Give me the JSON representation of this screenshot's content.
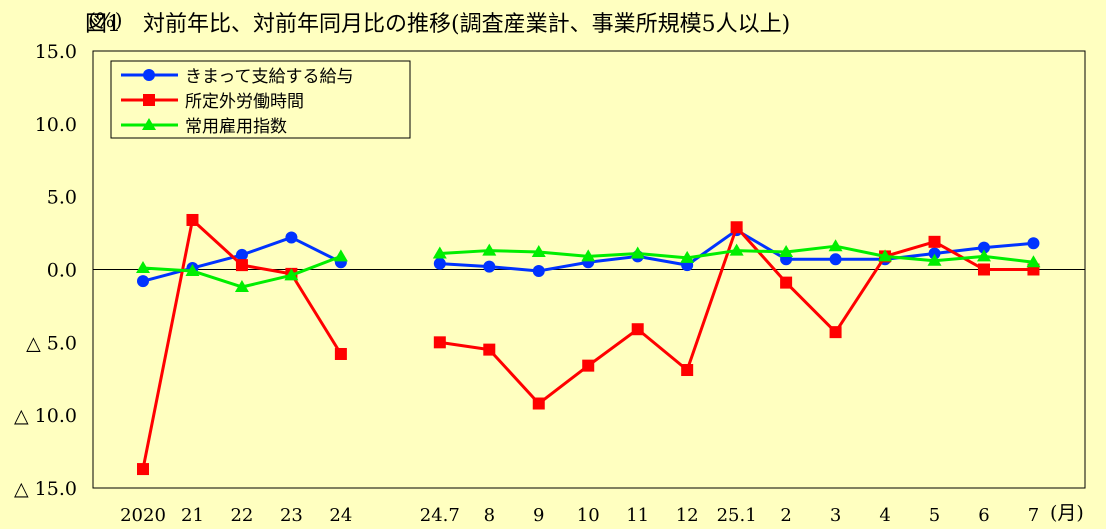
{
  "chart_data": {
    "type": "line",
    "title": "図1　対前年比、対前年同月比の推移(調査産業計、事業所規模5人以上)",
    "ylabel_unit": "(%)",
    "xlabel_unit": "(月)",
    "ylim": [
      -15,
      15
    ],
    "yticks": [
      "15.0",
      "10.0",
      "5.0",
      "0.0",
      "△ 5.0",
      "△ 10.0",
      "△ 15.0"
    ],
    "ytick_values": [
      15,
      10,
      5,
      0,
      -5,
      -10,
      -15
    ],
    "categories": [
      "2020",
      "21",
      "22",
      "23",
      "24",
      "",
      "24.7",
      "8",
      "9",
      "10",
      "11",
      "12",
      "25.1",
      "2",
      "3",
      "4",
      "5",
      "6",
      "7"
    ],
    "legend_position": "top-left",
    "grid": false,
    "series": [
      {
        "name": "きまって支給する給与",
        "color": "#0033ff",
        "marker": "circle",
        "values": [
          -0.8,
          0.1,
          1.0,
          2.2,
          0.5,
          null,
          0.4,
          0.2,
          -0.1,
          0.5,
          0.9,
          0.3,
          2.7,
          0.7,
          0.7,
          0.7,
          1.1,
          1.5,
          1.8
        ]
      },
      {
        "name": "所定外労働時間",
        "color": "#ff0000",
        "marker": "square",
        "values": [
          -13.7,
          3.4,
          0.3,
          -0.3,
          -5.8,
          null,
          -5.0,
          -5.5,
          -9.2,
          -6.6,
          -4.1,
          -6.9,
          2.9,
          -0.9,
          -4.3,
          0.9,
          1.9,
          0.0,
          0.0
        ]
      },
      {
        "name": "常用雇用指数",
        "color": "#00ee00",
        "marker": "triangle",
        "values": [
          0.1,
          -0.1,
          -1.2,
          -0.4,
          0.9,
          null,
          1.1,
          1.3,
          1.2,
          0.9,
          1.1,
          0.8,
          1.3,
          1.2,
          1.6,
          0.9,
          0.6,
          0.9,
          0.5
        ]
      }
    ]
  }
}
